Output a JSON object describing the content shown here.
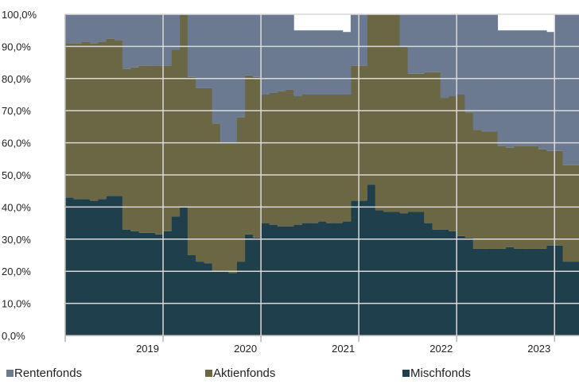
{
  "chart_data": {
    "type": "area",
    "title": "",
    "xlabel": "",
    "ylabel": "",
    "ylim": [
      0,
      100
    ],
    "y_ticks": [
      "0,0%",
      "10,0%",
      "20,0%",
      "30,0%",
      "40,0%",
      "50,0%",
      "60,0%",
      "70,0%",
      "80,0%",
      "90,0%",
      "100,0%"
    ],
    "x_ticks": [
      "2019",
      "2020",
      "2021",
      "2022",
      "2023"
    ],
    "x_start": "2018-01",
    "x_end": "2023-03",
    "grid": true,
    "legend_position": "bottom",
    "x": [
      "2018-01",
      "2018-02",
      "2018-03",
      "2018-04",
      "2018-05",
      "2018-06",
      "2018-07",
      "2018-08",
      "2018-09",
      "2018-10",
      "2018-11",
      "2018-12",
      "2019-01",
      "2019-02",
      "2019-03",
      "2019-04",
      "2019-05",
      "2019-06",
      "2019-07",
      "2019-08",
      "2019-09",
      "2019-10",
      "2019-11",
      "2019-12",
      "2020-01",
      "2020-02",
      "2020-03",
      "2020-04",
      "2020-05",
      "2020-06",
      "2020-07",
      "2020-08",
      "2020-09",
      "2020-10",
      "2020-11",
      "2020-12",
      "2021-01",
      "2021-02",
      "2021-03",
      "2021-04",
      "2021-05",
      "2021-06",
      "2021-07",
      "2021-08",
      "2021-09",
      "2021-10",
      "2021-11",
      "2021-12",
      "2022-01",
      "2022-02",
      "2022-03",
      "2022-04",
      "2022-05",
      "2022-06",
      "2022-07",
      "2022-08",
      "2022-09",
      "2022-10",
      "2022-11",
      "2022-12",
      "2023-01",
      "2023-02",
      "2023-03"
    ],
    "series": [
      {
        "name": "Mischfonds",
        "color": "#1e3f4b",
        "values": [
          43,
          42.5,
          42.5,
          42,
          42.5,
          43.5,
          43.5,
          33,
          32.5,
          32,
          32,
          31.5,
          32.5,
          37,
          40,
          25,
          23,
          22.5,
          20,
          20,
          19.5,
          23,
          31.5,
          30.5,
          35,
          34.5,
          34,
          34,
          34.5,
          35,
          35,
          35.5,
          35,
          35,
          35.5,
          42,
          42,
          47,
          39,
          38.5,
          38.5,
          38,
          38.5,
          38.5,
          35,
          33,
          33,
          32.5,
          31,
          30.5,
          27,
          27,
          27,
          27,
          27.5,
          27,
          27,
          27,
          27,
          28,
          28,
          23,
          23
        ]
      },
      {
        "name": "Aktienfonds",
        "color": "#6b6744",
        "values": [
          48,
          48.5,
          49,
          49,
          49,
          49,
          48.5,
          50,
          51,
          52,
          52,
          52.5,
          51.5,
          52,
          60,
          55.5,
          54,
          54.5,
          46,
          40,
          40.5,
          45,
          49.5,
          50,
          40,
          41,
          42,
          42.5,
          40,
          40,
          40,
          39.5,
          40,
          40,
          39.5,
          42,
          42,
          53,
          61,
          61.5,
          61.5,
          52,
          43,
          43,
          47,
          49,
          41,
          42,
          44,
          39,
          37,
          36.5,
          36.5,
          32,
          31,
          32,
          32,
          32,
          31,
          29.5,
          29.5,
          30,
          30
        ]
      },
      {
        "name": "Rentenfonds",
        "color": "#6b7a91",
        "values": [
          9,
          9,
          8.5,
          9,
          8.5,
          7.5,
          8,
          17,
          16.5,
          16,
          16,
          16,
          16,
          11,
          0,
          19.5,
          23,
          23,
          34,
          40,
          40,
          32,
          19,
          19.5,
          25,
          24.5,
          24,
          23.5,
          20.5,
          20,
          20,
          20,
          20,
          20,
          19.5,
          16,
          16,
          0,
          0,
          0,
          0,
          10,
          18.5,
          18.5,
          18,
          18,
          26,
          25.5,
          25,
          30.5,
          36,
          36.5,
          36.5,
          36,
          36.5,
          36,
          36,
          36,
          37,
          37,
          42.5,
          47,
          47
        ]
      }
    ]
  },
  "legend": [
    {
      "label": "Rentenfonds",
      "color": "#6b7a91",
      "icon": "square-icon"
    },
    {
      "label": "Aktienfonds",
      "color": "#6b6744",
      "icon": "square-icon"
    },
    {
      "label": "Mischfonds",
      "color": "#1e3f4b",
      "icon": "square-icon"
    }
  ]
}
